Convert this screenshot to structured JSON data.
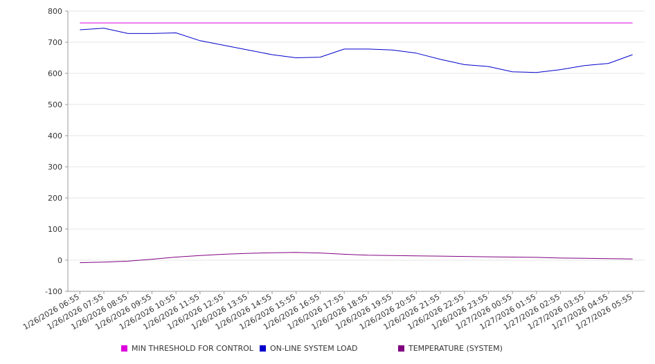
{
  "chart_data": {
    "type": "line",
    "ylim": [
      -100,
      800
    ],
    "yticks": [
      -100,
      0,
      100,
      200,
      300,
      400,
      500,
      600,
      700,
      800
    ],
    "grid": true,
    "legend_position": "bottom",
    "x": [
      "1/26/2026 06:55",
      "1/26/2026 07:55",
      "1/26/2026 08:55",
      "1/26/2026 09:55",
      "1/26/2026 10:55",
      "1/26/2026 11:55",
      "1/26/2026 12:55",
      "1/26/2026 13:55",
      "1/26/2026 14:55",
      "1/26/2026 15:55",
      "1/26/2026 16:55",
      "1/26/2026 17:55",
      "1/26/2026 18:55",
      "1/26/2026 19:55",
      "1/26/2026 20:55",
      "1/26/2026 21:55",
      "1/26/2026 22:55",
      "1/26/2026 23:55",
      "1/27/2026 00:55",
      "1/27/2026 01:55",
      "1/27/2026 02:55",
      "1/27/2026 03:55",
      "1/27/2026 04:55",
      "1/27/2026 05:55"
    ],
    "series": [
      {
        "name": "MIN THRESHOLD FOR CONTROL",
        "color": "#dd00dd",
        "values": [
          762,
          762,
          762,
          762,
          762,
          762,
          762,
          762,
          762,
          762,
          762,
          762,
          762,
          762,
          762,
          762,
          762,
          762,
          762,
          762,
          762,
          762,
          762,
          762
        ]
      },
      {
        "name": "ON-LINE SYSTEM LOAD",
        "color": "#0000cc",
        "values": [
          740,
          745,
          728,
          728,
          730,
          705,
          690,
          675,
          660,
          650,
          652,
          678,
          678,
          675,
          665,
          645,
          628,
          622,
          605,
          603,
          612,
          625,
          632,
          660
        ]
      },
      {
        "name": "TEMPERATURE (SYSTEM)",
        "color": "#800080",
        "values": [
          -8,
          -6,
          -3,
          3,
          10,
          15,
          19,
          22,
          24,
          25,
          23,
          19,
          16,
          15,
          14,
          13,
          12,
          11,
          10,
          9,
          7,
          6,
          5,
          4
        ]
      }
    ]
  }
}
